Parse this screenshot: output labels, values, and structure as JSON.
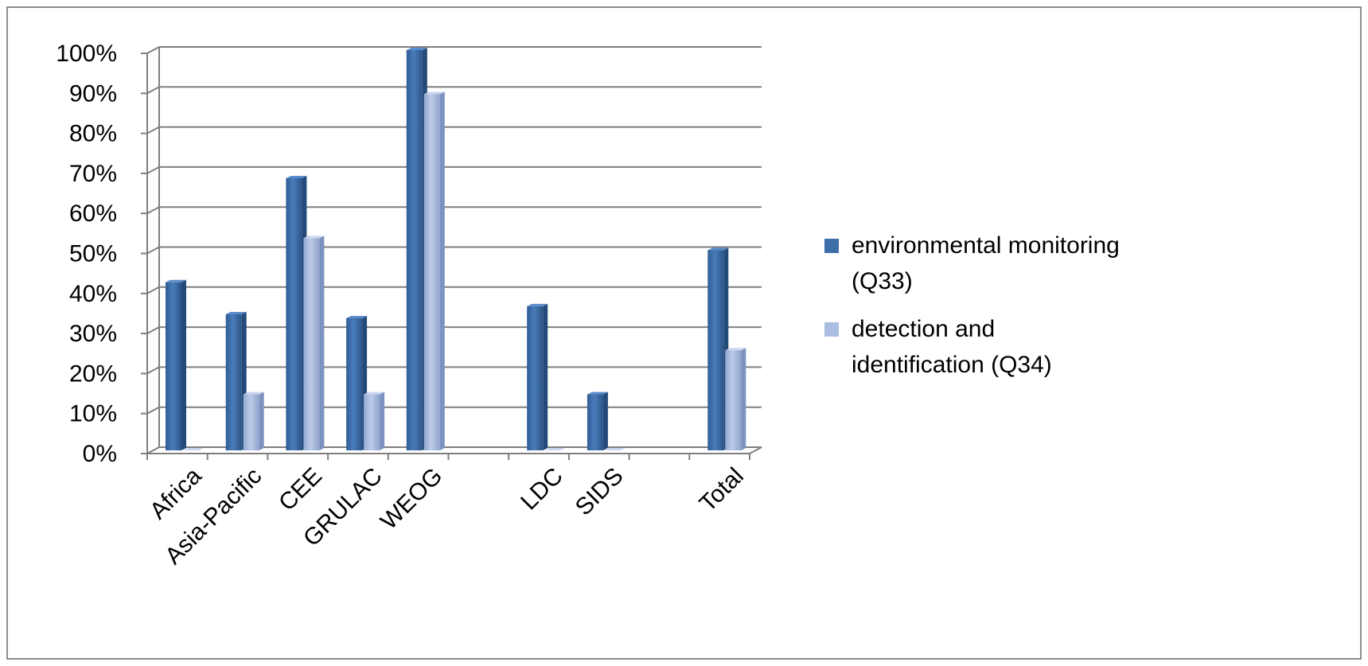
{
  "chart_data": {
    "type": "bar",
    "categories": [
      "Africa",
      "Asia-Pacific",
      "CEE",
      "GRULAC",
      "WEOG",
      "",
      "LDC",
      "SIDS",
      "",
      "Total"
    ],
    "series": [
      {
        "name": "environmental monitoring (Q33)",
        "color": "#3d6ea8",
        "values": [
          42,
          34,
          68,
          33,
          100,
          null,
          36,
          14,
          null,
          50
        ]
      },
      {
        "name": "detection and identification (Q34)",
        "color": "#a9bde0",
        "values": [
          0,
          14,
          53,
          14,
          89,
          null,
          0,
          0,
          null,
          25
        ]
      }
    ],
    "ylim": [
      0,
      100
    ],
    "yticks": [
      "0%",
      "10%",
      "20%",
      "30%",
      "40%",
      "50%",
      "60%",
      "70%",
      "80%",
      "90%",
      "100%"
    ],
    "legend": {
      "placement": "right",
      "entries": [
        {
          "lines": [
            "environmental monitoring",
            "(Q33)"
          ],
          "color": "#3d6ea8"
        },
        {
          "lines": [
            "detection and",
            "identification (Q34)"
          ],
          "color": "#a9bde0"
        }
      ]
    },
    "grid": true,
    "style": "3d-clustered-column"
  }
}
